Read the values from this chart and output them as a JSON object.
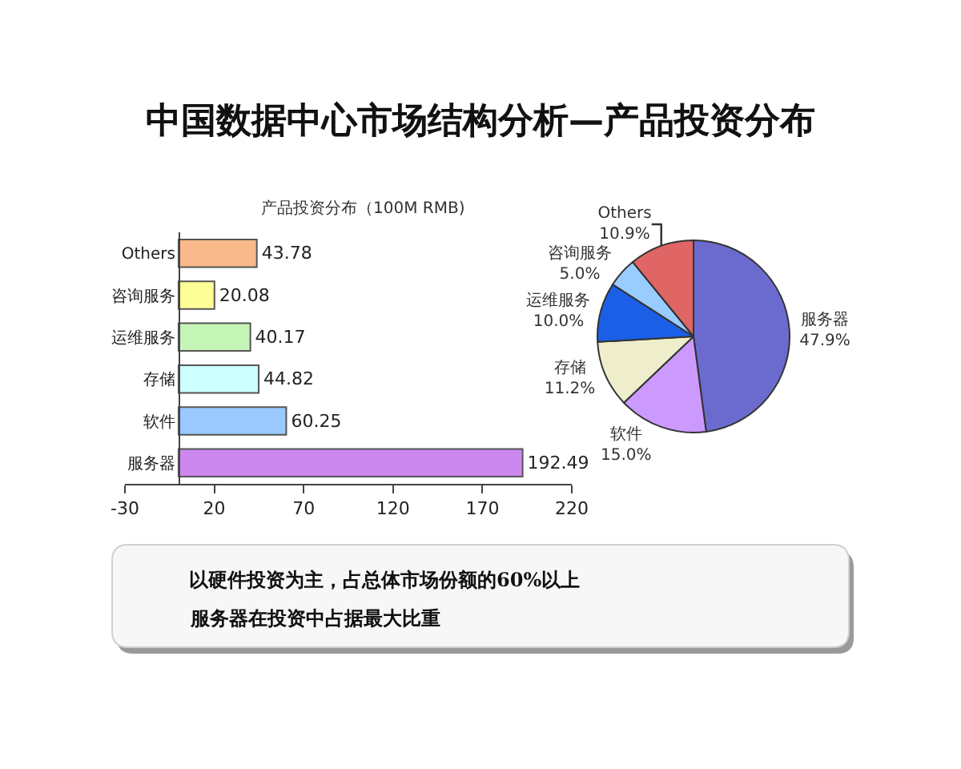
{
  "chart_data": [
    {
      "type": "bar",
      "title": "中国数据中心市场结构分析—产品投资分布",
      "subtitle": "产品投资分布（100M RMB)",
      "orientation": "horizontal",
      "categories": [
        "Others",
        "咨询服务",
        "运维服务",
        "存储",
        "软件",
        "服务器"
      ],
      "values": [
        43.78,
        20.08,
        40.17,
        44.82,
        60.25,
        192.49
      ],
      "colors": [
        "#f9b98a",
        "#ffff99",
        "#c6f5b8",
        "#ccffff",
        "#99c9ff",
        "#cc88ee"
      ],
      "xlim": [
        -30,
        220
      ],
      "xticks": [
        -30,
        20,
        70,
        120,
        170,
        220
      ],
      "data_labels": true
    },
    {
      "type": "pie",
      "categories": [
        "服务器",
        "软件",
        "存储",
        "运维服务",
        "咨询服务",
        "Others"
      ],
      "values": [
        47.9,
        15.0,
        11.2,
        10.0,
        5.0,
        10.9
      ],
      "colors": [
        "#6b6bcf",
        "#cc99ff",
        "#eeeecc",
        "#1a5fe6",
        "#99ccff",
        "#e06666"
      ],
      "value_labels": [
        "47.9%",
        "15.0%",
        "11.2%",
        "10.0%",
        "5.0%",
        "10.9%"
      ]
    },
    {
      "type": "other",
      "annotations": [
        "以硬件投资为主，占总体市场份额的60%以上",
        "服务器在投资中占据最大比重"
      ]
    }
  ]
}
